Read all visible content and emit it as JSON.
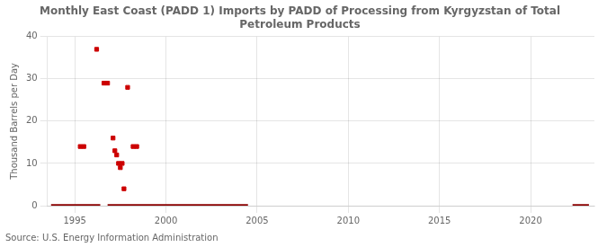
{
  "chart_data": {
    "type": "scatter",
    "title": "Monthly East Coast (PADD 1) Imports by PADD of Processing from Kyrgyzstan of Total\nPetroleum Products",
    "ylabel": "Thousand Barrels per Day",
    "source": "Source: U.S. Energy Information Administration",
    "xlim": [
      1993.5,
      2023.5
    ],
    "xticks": [
      1995,
      2000,
      2005,
      2010,
      2015,
      2020
    ],
    "ylim": [
      0,
      40
    ],
    "yticks": [
      0,
      10,
      20,
      30,
      40
    ],
    "grid": true,
    "series": [
      {
        "type": "scatter",
        "color": "#cc0000",
        "marker": "square",
        "x": [
          1995.3,
          1995.5,
          1996.2,
          1996.6,
          1996.8,
          1997.1,
          1997.2,
          1997.3,
          1997.4,
          1997.5,
          1997.6,
          1997.9,
          1998.2,
          1998.4,
          1997.7
        ],
        "values": [
          14,
          14,
          37,
          29,
          29,
          16,
          13,
          12,
          10,
          9,
          10,
          28,
          14,
          14,
          4
        ]
      },
      {
        "type": "line",
        "color": "#8b0000",
        "x": [
          1993.7,
          1996.4
        ],
        "values": [
          0,
          0
        ]
      },
      {
        "type": "line",
        "color": "#8b0000",
        "x": [
          1996.8,
          2004.5
        ],
        "values": [
          0,
          0
        ]
      },
      {
        "type": "line",
        "color": "#8b0000",
        "x": [
          2022.3,
          2023.2
        ],
        "values": [
          0,
          0
        ]
      }
    ]
  }
}
